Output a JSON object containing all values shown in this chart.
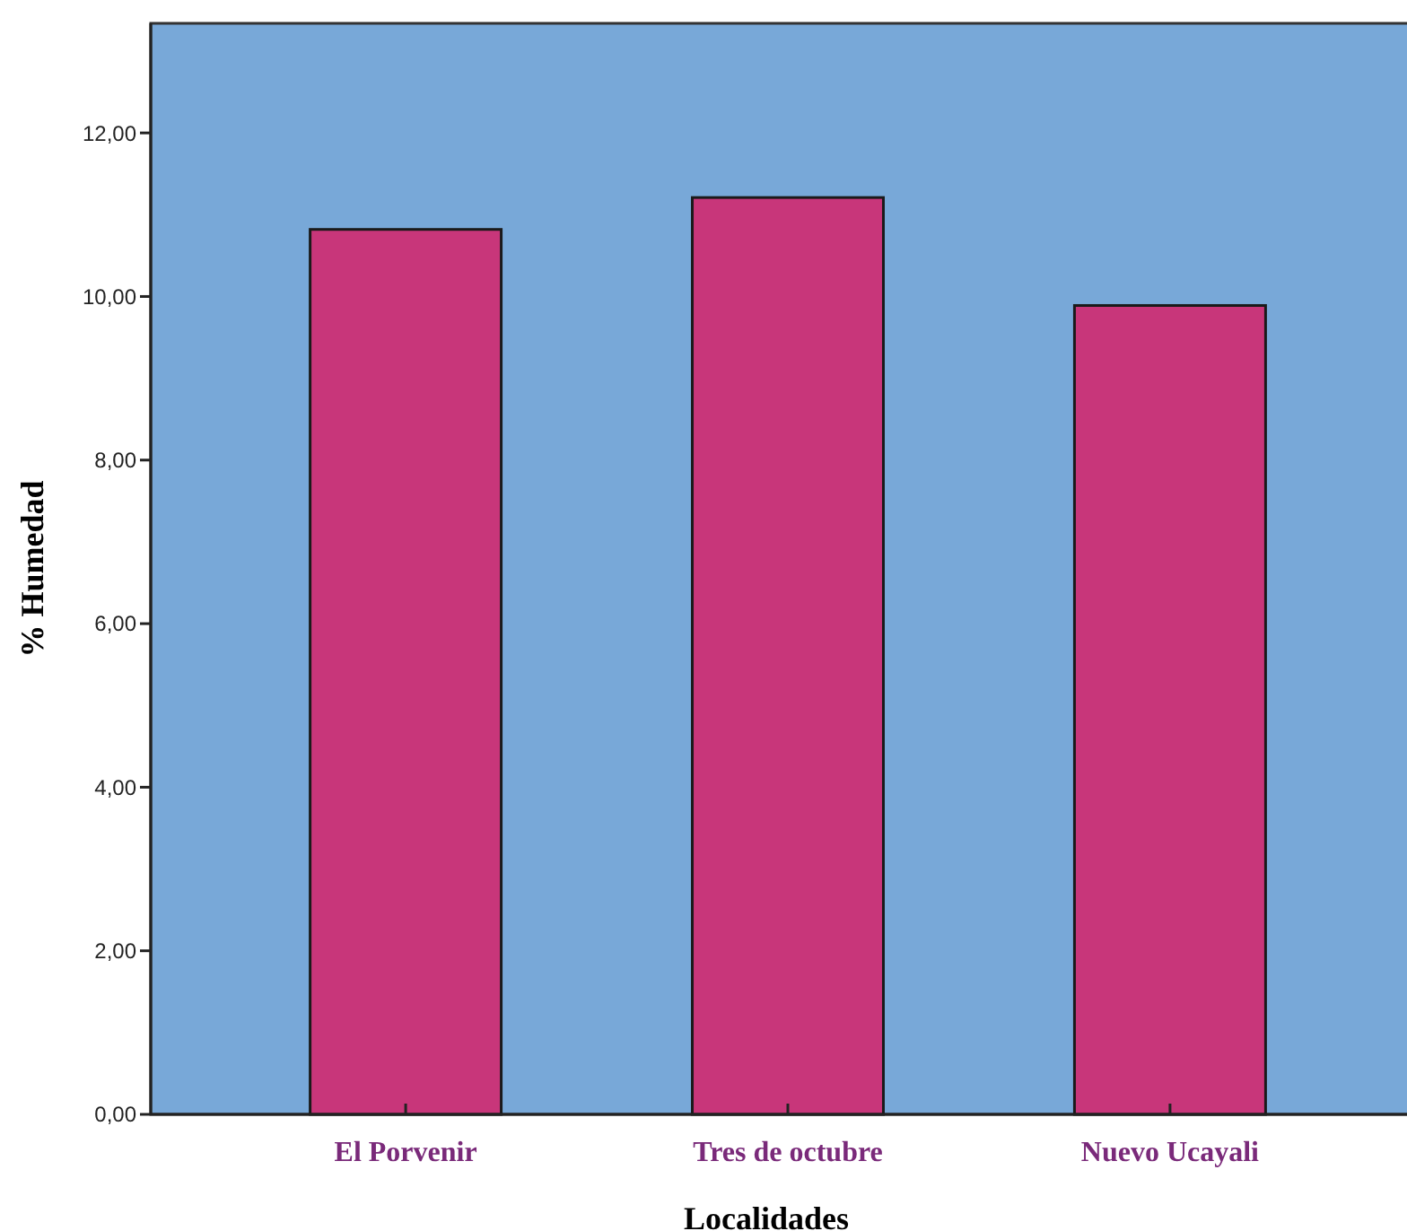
{
  "chart_data": {
    "type": "bar",
    "xlabel": "Localidades",
    "ylabel": "% Humedad",
    "categories": [
      "El Porvenir",
      "Tres de octubre",
      "Nuevo Ucayali"
    ],
    "values": [
      10.82,
      11.21,
      9.89
    ],
    "color": "#c8367a",
    "ylim": [
      0,
      13.34
    ],
    "yticks": [
      {
        "value": 0,
        "label": "0,00"
      },
      {
        "value": 2,
        "label": "2,00"
      },
      {
        "value": 4,
        "label": "4,00"
      },
      {
        "value": 6,
        "label": "6,00"
      },
      {
        "value": 8,
        "label": "8,00"
      },
      {
        "value": 10,
        "label": "10,00"
      },
      {
        "value": 12,
        "label": "12,00"
      }
    ],
    "grid": false
  }
}
